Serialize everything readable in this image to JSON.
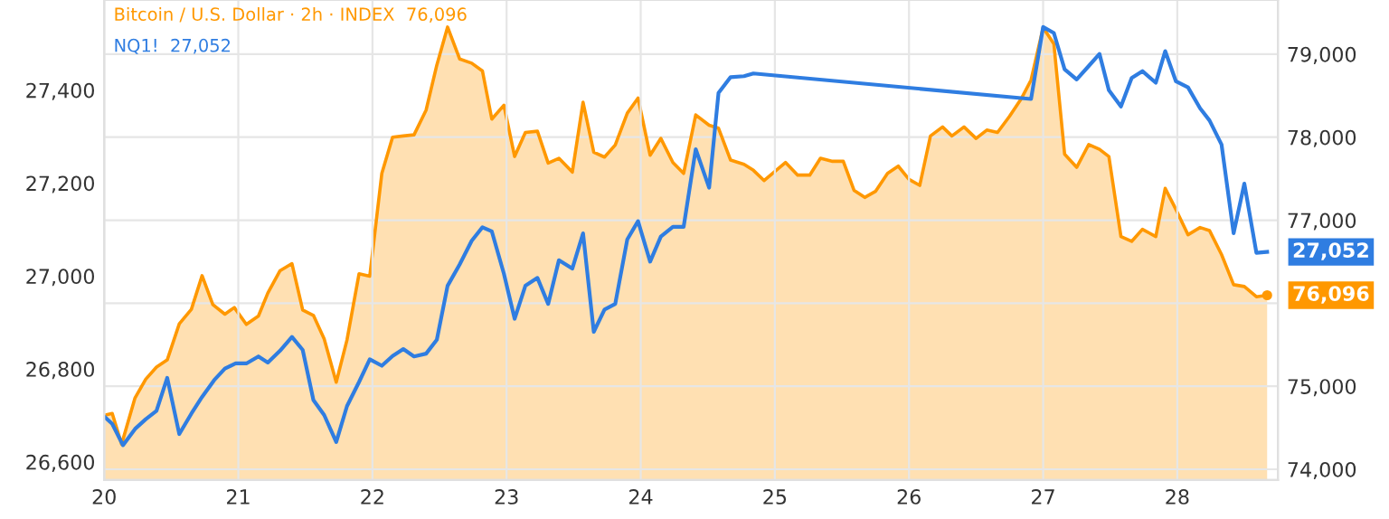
{
  "chart_data": {
    "type": "line",
    "grid": true,
    "xlim": [
      20,
      28.75
    ],
    "xticks": [
      {
        "value": 20,
        "label": "20"
      },
      {
        "value": 21,
        "label": "21"
      },
      {
        "value": 22,
        "label": "22"
      },
      {
        "value": 23,
        "label": "23"
      },
      {
        "value": 24,
        "label": "24"
      },
      {
        "value": 25,
        "label": "25"
      },
      {
        "value": 26,
        "label": "26"
      },
      {
        "value": 27,
        "label": "27"
      },
      {
        "value": 28,
        "label": "28"
      }
    ],
    "ylim": [
      26561,
      27594
    ],
    "yticks": [
      {
        "value": 26600,
        "label": "26,600"
      },
      {
        "value": 26800,
        "label": "26,800"
      },
      {
        "value": 27000,
        "label": "27,000"
      },
      {
        "value": 27200,
        "label": "27,200"
      },
      {
        "value": 27400,
        "label": "27,400"
      }
    ],
    "y2lim": [
      73870,
      79652
    ],
    "y2ticks": [
      {
        "value": 74000,
        "label": "74,000"
      },
      {
        "value": 75000,
        "label": "75,000"
      },
      {
        "value": 76000,
        "label": null
      },
      {
        "value": 77000,
        "label": "77,000"
      },
      {
        "value": 78000,
        "label": "78,000"
      },
      {
        "value": 79000,
        "label": "79,000"
      }
    ],
    "series": [
      {
        "name": "Bitcoin / U.S. Dollar · 2h · INDEX",
        "type": "area",
        "axis": "y2",
        "color": "#ff9800",
        "x": [
          20.0,
          20.06,
          20.13,
          20.23,
          20.31,
          20.39,
          20.47,
          20.56,
          20.65,
          20.73,
          20.81,
          20.9,
          20.97,
          21.06,
          21.15,
          21.22,
          21.31,
          21.4,
          21.48,
          21.56,
          21.64,
          21.73,
          21.81,
          21.9,
          21.98,
          22.07,
          22.15,
          22.23,
          22.31,
          22.4,
          22.48,
          22.56,
          22.65,
          22.74,
          22.82,
          22.89,
          22.98,
          23.06,
          23.14,
          23.23,
          23.31,
          23.39,
          23.49,
          23.57,
          23.65,
          23.73,
          23.81,
          23.9,
          23.98,
          24.07,
          24.15,
          24.24,
          24.32,
          24.41,
          24.51,
          24.58,
          24.67,
          24.77,
          24.84,
          24.92,
          25.01,
          25.08,
          25.17,
          25.26,
          25.34,
          25.43,
          25.51,
          25.59,
          25.67,
          25.75,
          25.84,
          25.92,
          26.0,
          26.08,
          26.16,
          26.25,
          26.32,
          26.41,
          26.5,
          26.58,
          26.66,
          26.75,
          26.84,
          26.91,
          27.0,
          27.08,
          27.16,
          27.25,
          27.34,
          27.42,
          27.49,
          27.58,
          27.66,
          27.74,
          27.84,
          27.91,
          27.99,
          28.08,
          28.17,
          28.24,
          28.33,
          28.42,
          28.5,
          28.59,
          28.67
        ],
        "values": [
          74650,
          74672,
          74302,
          74860,
          75085,
          75230,
          75317,
          75752,
          75926,
          76332,
          75984,
          75868,
          75948,
          75745,
          75846,
          76122,
          76390,
          76477,
          75919,
          75853,
          75571,
          75049,
          75556,
          76354,
          76325,
          77564,
          78000,
          78014,
          78028,
          78326,
          78869,
          79326,
          78942,
          78891,
          78797,
          78217,
          78384,
          77767,
          78057,
          78072,
          77688,
          77746,
          77579,
          78420,
          77818,
          77760,
          77905,
          78289,
          78471,
          77782,
          77985,
          77695,
          77564,
          78268,
          78144,
          78108,
          77724,
          77673,
          77601,
          77477,
          77601,
          77695,
          77543,
          77543,
          77746,
          77709,
          77709,
          77361,
          77274,
          77347,
          77564,
          77651,
          77492,
          77419,
          78014,
          78123,
          78014,
          78123,
          77985,
          78086,
          78057,
          78253,
          78471,
          78688,
          79319,
          79123,
          77796,
          77637,
          77912,
          77854,
          77767,
          76803,
          76745,
          76890,
          76803,
          77383,
          77129,
          76825,
          76912,
          76876,
          76586,
          76223,
          76201,
          76078,
          76096
        ],
        "value_labels": [
          null,
          null,
          null,
          null,
          null,
          null,
          null,
          null,
          null,
          null,
          null,
          null,
          null,
          null,
          null,
          null,
          null,
          null,
          null,
          null,
          null,
          null,
          null,
          null,
          null,
          null,
          null,
          null,
          null,
          null,
          null,
          null,
          null,
          null,
          null,
          null,
          null,
          null,
          null,
          null,
          null,
          null,
          null,
          null,
          null,
          null,
          null,
          null,
          null,
          null,
          null,
          null,
          null,
          null,
          null,
          null,
          null,
          null,
          null,
          null,
          null,
          null,
          null,
          null,
          null,
          null,
          null,
          null,
          null,
          null,
          null,
          null,
          null,
          null,
          null,
          null,
          null,
          null,
          null,
          null,
          null,
          null,
          null,
          null,
          null,
          null,
          null,
          null,
          null,
          null,
          null,
          null,
          null,
          null,
          null,
          null,
          null,
          null,
          null,
          null,
          null,
          null,
          null,
          null,
          "76,096"
        ]
      },
      {
        "name": "NQ1!",
        "axis": "y",
        "color": "#2f7de1",
        "x": [
          20.0,
          20.06,
          20.14,
          20.23,
          20.31,
          20.39,
          20.47,
          20.56,
          20.65,
          20.73,
          20.82,
          20.9,
          20.98,
          21.06,
          21.15,
          21.22,
          21.31,
          21.4,
          21.48,
          21.56,
          21.64,
          21.73,
          21.81,
          21.9,
          21.98,
          22.07,
          22.15,
          22.23,
          22.31,
          22.4,
          22.48,
          22.56,
          22.65,
          22.74,
          22.82,
          22.89,
          22.98,
          23.06,
          23.14,
          23.23,
          23.31,
          23.39,
          23.49,
          23.57,
          23.65,
          23.73,
          23.81,
          23.9,
          23.98,
          24.07,
          24.15,
          24.24,
          24.32,
          24.41,
          24.51,
          24.58,
          24.67,
          24.77,
          24.84,
          26.91,
          27.0,
          27.08,
          27.16,
          27.25,
          27.34,
          27.42,
          27.49,
          27.58,
          27.66,
          27.74,
          27.84,
          27.91,
          27.99,
          28.08,
          28.17,
          28.24,
          28.33,
          28.42,
          28.5,
          28.59,
          28.67
        ],
        "values": [
          26698,
          26682,
          26636,
          26671,
          26692,
          26710,
          26781,
          26660,
          26704,
          26740,
          26776,
          26801,
          26812,
          26812,
          26827,
          26814,
          26839,
          26869,
          26841,
          26733,
          26701,
          26643,
          26720,
          26772,
          26821,
          26807,
          26828,
          26843,
          26827,
          26833,
          26863,
          26979,
          27025,
          27076,
          27105,
          27096,
          27005,
          26908,
          26979,
          26996,
          26940,
          27034,
          27016,
          27092,
          26880,
          26928,
          26940,
          27079,
          27118,
          27031,
          27085,
          27106,
          27106,
          27273,
          27190,
          27394,
          27428,
          27430,
          27436,
          27381,
          27536,
          27523,
          27445,
          27423,
          27452,
          27478,
          27400,
          27365,
          27426,
          27441,
          27416,
          27484,
          27419,
          27406,
          27361,
          27335,
          27283,
          27092,
          27199,
          27050,
          27052
        ],
        "value_labels": [
          null,
          null,
          null,
          null,
          null,
          null,
          null,
          null,
          null,
          null,
          null,
          null,
          null,
          null,
          null,
          null,
          null,
          null,
          null,
          null,
          null,
          null,
          null,
          null,
          null,
          null,
          null,
          null,
          null,
          null,
          null,
          null,
          null,
          null,
          null,
          null,
          null,
          null,
          null,
          null,
          null,
          null,
          null,
          null,
          null,
          null,
          null,
          null,
          null,
          null,
          null,
          null,
          null,
          null,
          null,
          null,
          null,
          null,
          null,
          null,
          null,
          null,
          null,
          null,
          null,
          null,
          null,
          null,
          null,
          null,
          null,
          null,
          null,
          null,
          null,
          null,
          null,
          null,
          null,
          null,
          "27,052"
        ]
      }
    ]
  }
}
